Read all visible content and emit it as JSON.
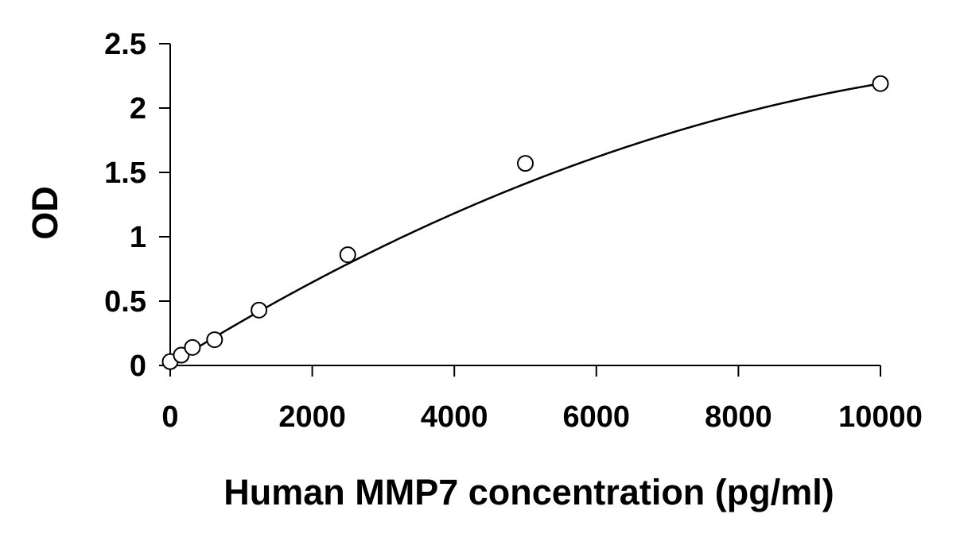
{
  "chart_data": {
    "type": "scatter",
    "title": "",
    "xlabel": "Human MMP7 concentration (pg/ml)",
    "ylabel": "OD",
    "xlim": [
      0,
      10000
    ],
    "ylim": [
      0,
      2.5
    ],
    "x_ticks": [
      0,
      2000,
      4000,
      6000,
      8000,
      10000
    ],
    "x_tick_labels": [
      "0",
      "2000",
      "4000",
      "6000",
      "8000",
      "10000"
    ],
    "y_ticks": [
      0,
      0.5,
      1,
      1.5,
      2,
      2.5
    ],
    "y_tick_labels": [
      "0",
      "0.5",
      "1",
      "1.5",
      "2",
      "2.5"
    ],
    "grid": false,
    "legend": "none",
    "series": [
      {
        "marker": "open-circle",
        "x": [
          0,
          156,
          313,
          625,
          1250,
          2500,
          5000,
          10000
        ],
        "y": [
          0.03,
          0.08,
          0.14,
          0.2,
          0.43,
          0.86,
          1.57,
          2.19
        ]
      }
    ],
    "fit_curve": {
      "type": "polynomial",
      "coefficients": [
        0.01,
        0.000343,
        -1.25e-08
      ],
      "x_range": [
        0,
        10000
      ]
    },
    "colors": {
      "axis": "#000000",
      "marker_stroke": "#000000",
      "marker_fill": "#ffffff",
      "curve": "#000000",
      "background": "#ffffff"
    }
  }
}
